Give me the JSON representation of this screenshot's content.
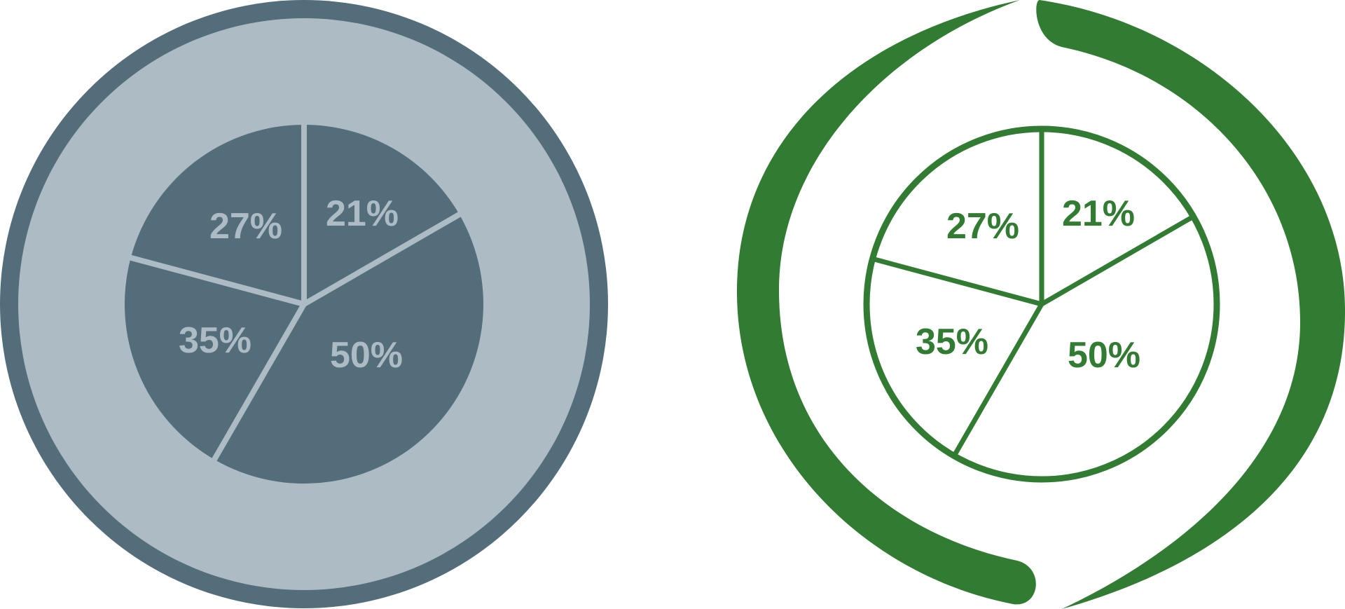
{
  "colors": {
    "slate_dark": "#546d7a",
    "slate_light": "#adbcc4",
    "green": "#317c32",
    "background": "#ffffff"
  },
  "icons": [
    {
      "name": "pie-chart-filled-icon",
      "style": "filled",
      "slices": [
        {
          "label": "21%"
        },
        {
          "label": "50%"
        },
        {
          "label": "35%"
        },
        {
          "label": "27%"
        }
      ]
    },
    {
      "name": "pie-chart-outline-icon",
      "style": "outline",
      "slices": [
        {
          "label": "21%"
        },
        {
          "label": "50%"
        },
        {
          "label": "35%"
        },
        {
          "label": "27%"
        }
      ]
    }
  ]
}
